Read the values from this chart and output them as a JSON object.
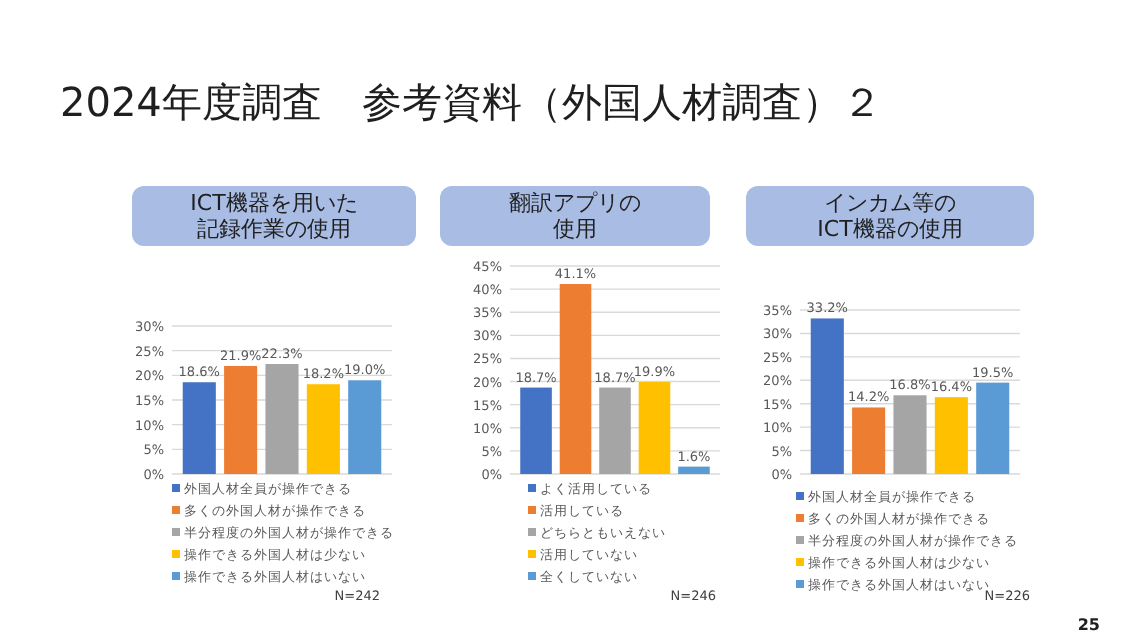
{
  "chart_data": [
    {
      "type": "bar",
      "title": "ICT機器を用いた記録作業の使用",
      "categories": [
        null
      ],
      "series": [
        {
          "name": "外国人材全員が操作できる",
          "color": "#4472c4",
          "values": [
            18.6
          ],
          "value_labels": [
            "18.6%"
          ]
        },
        {
          "name": "多くの外国人材が操作できる",
          "color": "#ed7d31",
          "values": [
            21.9
          ],
          "value_labels": [
            "21.9%"
          ]
        },
        {
          "name": "半分程度の外国人材が操作できる",
          "color": "#a5a5a5",
          "values": [
            22.3
          ],
          "value_labels": [
            "22.3%"
          ]
        },
        {
          "name": "操作できる外国人材は少ない",
          "color": "#ffc000",
          "values": [
            18.2
          ],
          "value_labels": [
            "18.2%"
          ]
        },
        {
          "name": "操作できる外国人材はいない",
          "color": "#5b9bd5",
          "values": [
            19.0
          ],
          "value_labels": [
            "19.0%"
          ]
        }
      ],
      "ylim": [
        0,
        30
      ],
      "yticks": [
        {
          "value": 0,
          "label": "0%"
        },
        {
          "value": 5,
          "label": "5%"
        },
        {
          "value": 10,
          "label": "10%"
        },
        {
          "value": 15,
          "label": "15%"
        },
        {
          "value": 20,
          "label": "20%"
        },
        {
          "value": 25,
          "label": "25%"
        },
        {
          "value": 30,
          "label": "30%"
        }
      ],
      "grid": "y",
      "legend": "bottom",
      "annotations": [
        "2024年度調査　参考資料（外国人材調査）２",
        "N=242"
      ]
    },
    {
      "type": "bar",
      "title": "翻訳アプリの使用",
      "categories": [
        null
      ],
      "series": [
        {
          "name": "よく活用している",
          "color": "#4472c4",
          "values": [
            18.7
          ],
          "value_labels": [
            "18.7%"
          ]
        },
        {
          "name": "活用している",
          "color": "#ed7d31",
          "values": [
            41.1
          ],
          "value_labels": [
            "41.1%"
          ]
        },
        {
          "name": "どちらともいえない",
          "color": "#a5a5a5",
          "values": [
            18.7
          ],
          "value_labels": [
            "18.7%"
          ]
        },
        {
          "name": "活用していない",
          "color": "#ffc000",
          "values": [
            19.9
          ],
          "value_labels": [
            "19.9%"
          ]
        },
        {
          "name": "全くしていない",
          "color": "#5b9bd5",
          "values": [
            1.6
          ],
          "value_labels": [
            "1.6%"
          ]
        }
      ],
      "ylim": [
        0,
        45
      ],
      "yticks": [
        {
          "value": 0,
          "label": "0%"
        },
        {
          "value": 5,
          "label": "5%"
        },
        {
          "value": 10,
          "label": "10%"
        },
        {
          "value": 15,
          "label": "15%"
        },
        {
          "value": 20,
          "label": "20%"
        },
        {
          "value": 25,
          "label": "25%"
        },
        {
          "value": 30,
          "label": "30%"
        },
        {
          "value": 35,
          "label": "35%"
        },
        {
          "value": 40,
          "label": "40%"
        },
        {
          "value": 45,
          "label": "45%"
        }
      ],
      "grid": "y",
      "legend": "bottom",
      "annotations": [
        "N=246"
      ]
    },
    {
      "type": "bar",
      "title": "インカム等のICT機器の使用",
      "categories": [
        null
      ],
      "series": [
        {
          "name": "外国人材全員が操作できる",
          "color": "#4472c4",
          "values": [
            33.2
          ],
          "value_labels": [
            "33.2%"
          ]
        },
        {
          "name": "多くの外国人材が操作できる",
          "color": "#ed7d31",
          "values": [
            14.2
          ],
          "value_labels": [
            "14.2%"
          ]
        },
        {
          "name": "半分程度の外国人材が操作できる",
          "color": "#a5a5a5",
          "values": [
            16.8
          ],
          "value_labels": [
            "16.8%"
          ]
        },
        {
          "name": "操作できる外国人材は少ない",
          "color": "#ffc000",
          "values": [
            16.4
          ],
          "value_labels": [
            "16.4%"
          ]
        },
        {
          "name": "操作できる外国人材はいない",
          "color": "#5b9bd5",
          "values": [
            19.5
          ],
          "value_labels": [
            "19.5%"
          ]
        }
      ],
      "ylim": [
        0,
        35
      ],
      "yticks": [
        {
          "value": 0,
          "label": "0%"
        },
        {
          "value": 5,
          "label": "5%"
        },
        {
          "value": 10,
          "label": "10%"
        },
        {
          "value": 15,
          "label": "15%"
        },
        {
          "value": 20,
          "label": "20%"
        },
        {
          "value": 25,
          "label": "25%"
        },
        {
          "value": 30,
          "label": "30%"
        },
        {
          "value": 35,
          "label": "35%"
        }
      ],
      "grid": "y",
      "legend": "bottom",
      "annotations": [
        "N=226",
        "25"
      ]
    }
  ]
}
